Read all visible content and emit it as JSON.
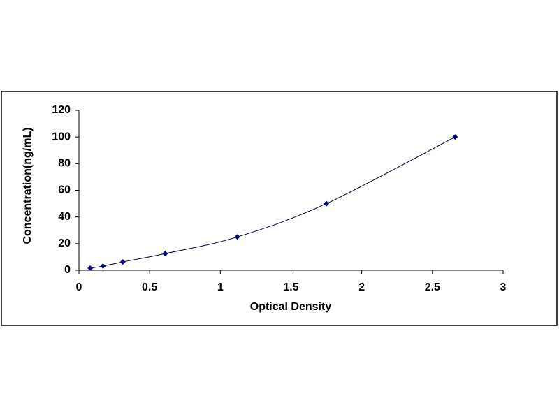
{
  "chart_data": {
    "type": "scatter",
    "x_label": "Optical Density",
    "y_label": "Concentration(ng/mL)",
    "x": [
      0.08,
      0.17,
      0.31,
      0.61,
      1.12,
      1.75,
      2.66
    ],
    "values": [
      1.56,
      3.12,
      6.25,
      12.5,
      25,
      50,
      100
    ],
    "color": "#000080",
    "line_color": "#000033",
    "xlim": [
      0,
      3
    ],
    "xticks": [
      0,
      0.5,
      1,
      1.5,
      2,
      2.5,
      3
    ],
    "ylim": [
      0,
      120
    ],
    "yticks": [
      0,
      20,
      40,
      60,
      80,
      100,
      120
    ],
    "grid": false
  }
}
